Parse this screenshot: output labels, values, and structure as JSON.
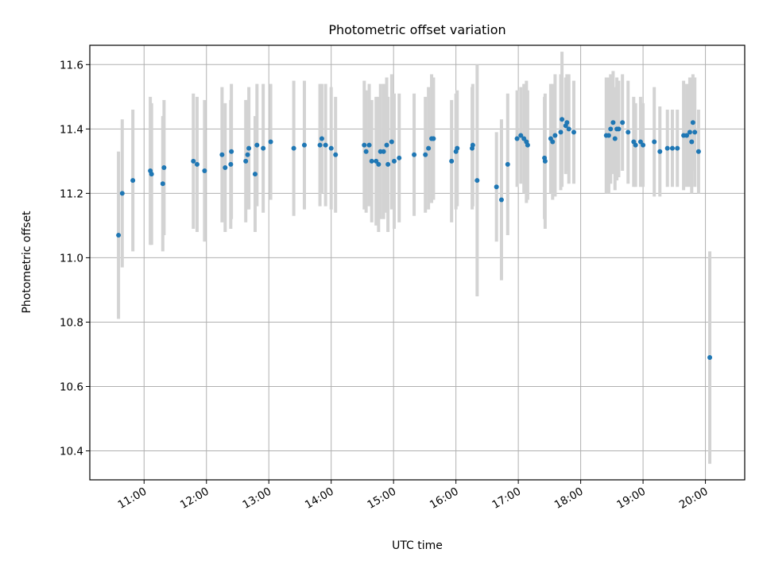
{
  "chart_data": {
    "type": "scatter",
    "title": "Photometric offset variation",
    "xlabel": "UTC time",
    "ylabel": "Photometric offset",
    "x_unit": "hour (UTC)",
    "xlim": [
      10.13,
      20.63
    ],
    "ylim": [
      10.31,
      11.66
    ],
    "grid": true,
    "colors": {
      "points": "#1f77b4",
      "errorbars": "#d3d3d3",
      "grid": "#b0b0b0"
    },
    "x_ticks": [
      {
        "value": 11,
        "label": "11:00"
      },
      {
        "value": 12,
        "label": "12:00"
      },
      {
        "value": 13,
        "label": "13:00"
      },
      {
        "value": 14,
        "label": "14:00"
      },
      {
        "value": 15,
        "label": "15:00"
      },
      {
        "value": 16,
        "label": "16:00"
      },
      {
        "value": 17,
        "label": "17:00"
      },
      {
        "value": 18,
        "label": "18:00"
      },
      {
        "value": 19,
        "label": "19:00"
      },
      {
        "value": 20,
        "label": "20:00"
      }
    ],
    "y_ticks": [
      {
        "value": 10.4,
        "label": "10.4"
      },
      {
        "value": 10.6,
        "label": "10.6"
      },
      {
        "value": 10.8,
        "label": "10.8"
      },
      {
        "value": 11.0,
        "label": "11.0"
      },
      {
        "value": 11.2,
        "label": "11.2"
      },
      {
        "value": 11.4,
        "label": "11.4"
      },
      {
        "value": 11.6,
        "label": "11.6"
      }
    ],
    "series": [
      {
        "points": [
          {
            "x": 10.59,
            "y": 11.07,
            "err": 0.26
          },
          {
            "x": 10.65,
            "y": 11.2,
            "err": 0.23
          },
          {
            "x": 10.82,
            "y": 11.24,
            "err": 0.22
          },
          {
            "x": 11.1,
            "y": 11.27,
            "err": 0.23
          },
          {
            "x": 11.12,
            "y": 11.26,
            "err": 0.22
          },
          {
            "x": 11.3,
            "y": 11.23,
            "err": 0.21
          },
          {
            "x": 11.32,
            "y": 11.28,
            "err": 0.21
          },
          {
            "x": 11.79,
            "y": 11.3,
            "err": 0.21
          },
          {
            "x": 11.85,
            "y": 11.29,
            "err": 0.21
          },
          {
            "x": 11.97,
            "y": 11.27,
            "err": 0.22
          },
          {
            "x": 12.25,
            "y": 11.32,
            "err": 0.21
          },
          {
            "x": 12.3,
            "y": 11.28,
            "err": 0.2
          },
          {
            "x": 12.39,
            "y": 11.29,
            "err": 0.2
          },
          {
            "x": 12.4,
            "y": 11.33,
            "err": 0.21
          },
          {
            "x": 12.63,
            "y": 11.3,
            "err": 0.19
          },
          {
            "x": 12.66,
            "y": 11.32,
            "err": 0.17
          },
          {
            "x": 12.68,
            "y": 11.34,
            "err": 0.19
          },
          {
            "x": 12.78,
            "y": 11.26,
            "err": 0.18
          },
          {
            "x": 12.81,
            "y": 11.35,
            "err": 0.19
          },
          {
            "x": 12.91,
            "y": 11.34,
            "err": 0.2
          },
          {
            "x": 13.03,
            "y": 11.36,
            "err": 0.18
          },
          {
            "x": 13.4,
            "y": 11.34,
            "err": 0.21
          },
          {
            "x": 13.57,
            "y": 11.35,
            "err": 0.2
          },
          {
            "x": 13.82,
            "y": 11.35,
            "err": 0.19
          },
          {
            "x": 13.85,
            "y": 11.37,
            "err": 0.17
          },
          {
            "x": 13.91,
            "y": 11.35,
            "err": 0.19
          },
          {
            "x": 14.0,
            "y": 11.34,
            "err": 0.19
          },
          {
            "x": 14.07,
            "y": 11.32,
            "err": 0.18
          },
          {
            "x": 14.53,
            "y": 11.35,
            "err": 0.2
          },
          {
            "x": 14.56,
            "y": 11.33,
            "err": 0.19
          },
          {
            "x": 14.61,
            "y": 11.35,
            "err": 0.19
          },
          {
            "x": 14.65,
            "y": 11.3,
            "err": 0.19
          },
          {
            "x": 14.72,
            "y": 11.3,
            "err": 0.2
          },
          {
            "x": 14.76,
            "y": 11.29,
            "err": 0.21
          },
          {
            "x": 14.79,
            "y": 11.33,
            "err": 0.21
          },
          {
            "x": 14.84,
            "y": 11.33,
            "err": 0.21
          },
          {
            "x": 14.89,
            "y": 11.35,
            "err": 0.21
          },
          {
            "x": 14.91,
            "y": 11.29,
            "err": 0.21
          },
          {
            "x": 14.97,
            "y": 11.36,
            "err": 0.21
          },
          {
            "x": 15.01,
            "y": 11.3,
            "err": 0.21
          },
          {
            "x": 15.09,
            "y": 11.31,
            "err": 0.2
          },
          {
            "x": 15.33,
            "y": 11.32,
            "err": 0.19
          },
          {
            "x": 15.51,
            "y": 11.32,
            "err": 0.18
          },
          {
            "x": 15.56,
            "y": 11.34,
            "err": 0.19
          },
          {
            "x": 15.61,
            "y": 11.37,
            "err": 0.2
          },
          {
            "x": 15.64,
            "y": 11.37,
            "err": 0.19
          },
          {
            "x": 15.93,
            "y": 11.3,
            "err": 0.19
          },
          {
            "x": 16.0,
            "y": 11.33,
            "err": 0.18
          },
          {
            "x": 16.02,
            "y": 11.34,
            "err": 0.18
          },
          {
            "x": 16.26,
            "y": 11.34,
            "err": 0.19
          },
          {
            "x": 16.27,
            "y": 11.35,
            "err": 0.19
          },
          {
            "x": 16.34,
            "y": 11.24,
            "err": 0.36
          },
          {
            "x": 16.65,
            "y": 11.22,
            "err": 0.17
          },
          {
            "x": 16.73,
            "y": 11.18,
            "err": 0.25
          },
          {
            "x": 16.83,
            "y": 11.29,
            "err": 0.22
          },
          {
            "x": 16.98,
            "y": 11.37,
            "err": 0.15
          },
          {
            "x": 17.04,
            "y": 11.38,
            "err": 0.15
          },
          {
            "x": 17.09,
            "y": 11.37,
            "err": 0.17
          },
          {
            "x": 17.13,
            "y": 11.36,
            "err": 0.19
          },
          {
            "x": 17.15,
            "y": 11.35,
            "err": 0.17
          },
          {
            "x": 17.42,
            "y": 11.31,
            "err": 0.19
          },
          {
            "x": 17.43,
            "y": 11.3,
            "err": 0.21
          },
          {
            "x": 17.52,
            "y": 11.37,
            "err": 0.17
          },
          {
            "x": 17.55,
            "y": 11.36,
            "err": 0.18
          },
          {
            "x": 17.59,
            "y": 11.38,
            "err": 0.19
          },
          {
            "x": 17.68,
            "y": 11.39,
            "err": 0.18
          },
          {
            "x": 17.7,
            "y": 11.43,
            "err": 0.21
          },
          {
            "x": 17.76,
            "y": 11.41,
            "err": 0.15
          },
          {
            "x": 17.78,
            "y": 11.42,
            "err": 0.15
          },
          {
            "x": 17.81,
            "y": 11.4,
            "err": 0.17
          },
          {
            "x": 17.89,
            "y": 11.39,
            "err": 0.16
          },
          {
            "x": 18.41,
            "y": 11.38,
            "err": 0.18
          },
          {
            "x": 18.45,
            "y": 11.38,
            "err": 0.18
          },
          {
            "x": 18.48,
            "y": 11.4,
            "err": 0.17
          },
          {
            "x": 18.52,
            "y": 11.42,
            "err": 0.16
          },
          {
            "x": 18.55,
            "y": 11.37,
            "err": 0.16
          },
          {
            "x": 18.58,
            "y": 11.4,
            "err": 0.16
          },
          {
            "x": 18.61,
            "y": 11.4,
            "err": 0.15
          },
          {
            "x": 18.67,
            "y": 11.42,
            "err": 0.15
          },
          {
            "x": 18.76,
            "y": 11.39,
            "err": 0.16
          },
          {
            "x": 18.85,
            "y": 11.36,
            "err": 0.14
          },
          {
            "x": 18.88,
            "y": 11.35,
            "err": 0.13
          },
          {
            "x": 18.96,
            "y": 11.36,
            "err": 0.14
          },
          {
            "x": 19.0,
            "y": 11.35,
            "err": 0.13
          },
          {
            "x": 19.18,
            "y": 11.36,
            "err": 0.17
          },
          {
            "x": 19.27,
            "y": 11.33,
            "err": 0.14
          },
          {
            "x": 19.39,
            "y": 11.34,
            "err": 0.12
          },
          {
            "x": 19.47,
            "y": 11.34,
            "err": 0.12
          },
          {
            "x": 19.55,
            "y": 11.34,
            "err": 0.12
          },
          {
            "x": 19.65,
            "y": 11.38,
            "err": 0.17
          },
          {
            "x": 19.7,
            "y": 11.38,
            "err": 0.16
          },
          {
            "x": 19.75,
            "y": 11.39,
            "err": 0.17
          },
          {
            "x": 19.78,
            "y": 11.36,
            "err": 0.16
          },
          {
            "x": 19.8,
            "y": 11.42,
            "err": 0.15
          },
          {
            "x": 19.83,
            "y": 11.39,
            "err": 0.17
          },
          {
            "x": 19.89,
            "y": 11.33,
            "err": 0.13
          },
          {
            "x": 20.07,
            "y": 10.69,
            "err": 0.33
          }
        ]
      }
    ]
  }
}
